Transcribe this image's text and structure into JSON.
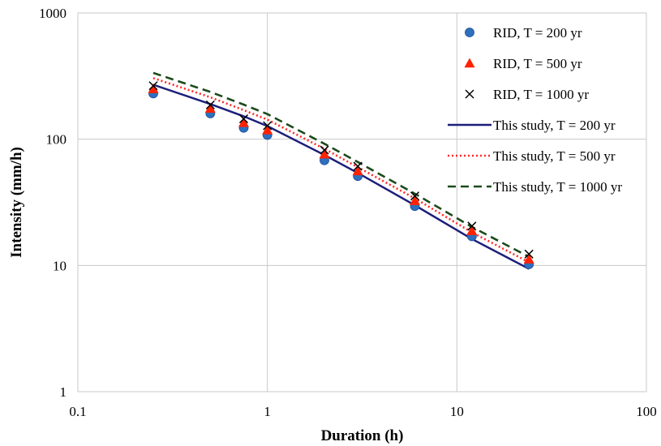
{
  "chart_data": {
    "type": "scatter",
    "xlabel": "Duration (h)",
    "ylabel": "Intensity (mm/h)",
    "x_scale": "log",
    "y_scale": "log",
    "xlim": [
      0.1,
      100
    ],
    "ylim": [
      1,
      1000
    ],
    "x_ticks": [
      0.1,
      1,
      10,
      100
    ],
    "x_tick_labels": [
      "0.1",
      "1",
      "10",
      "100"
    ],
    "y_ticks": [
      1,
      10,
      100,
      1000
    ],
    "y_tick_labels": [
      "1",
      "10",
      "100",
      "1000"
    ],
    "grid": true,
    "legend_position": "top-right",
    "series": [
      {
        "name": "RID, T = 200 yr",
        "kind": "marker",
        "marker": "circle",
        "color": "#2e6fbe",
        "x": [
          0.25,
          0.5,
          0.75,
          1,
          2,
          3,
          6,
          12,
          24
        ],
        "y": [
          230,
          160,
          123,
          108,
          68,
          51,
          29.5,
          17,
          10.2
        ]
      },
      {
        "name": "RID, T = 500 yr",
        "kind": "marker",
        "marker": "triangle",
        "color": "#ff2200",
        "x": [
          0.25,
          0.5,
          0.75,
          1,
          2,
          3,
          6,
          12,
          24
        ],
        "y": [
          250,
          175,
          135,
          118,
          76,
          56,
          32.5,
          18.8,
          11.2
        ]
      },
      {
        "name": "RID, T = 1000 yr",
        "kind": "marker",
        "marker": "cross",
        "color": "#000000",
        "x": [
          0.25,
          0.5,
          0.75,
          1,
          2,
          3,
          6,
          12,
          24
        ],
        "y": [
          265,
          187,
          145,
          128,
          82,
          61,
          35.5,
          20.5,
          12.3
        ]
      },
      {
        "name": "This study, T = 200 yr",
        "kind": "line",
        "dash": "solid",
        "color": "#1b1f7a",
        "x": [
          0.25,
          0.5,
          0.75,
          1,
          2,
          3,
          6,
          12,
          24
        ],
        "y": [
          270,
          190,
          152,
          127,
          75,
          54,
          30,
          16.2,
          9.4
        ]
      },
      {
        "name": "This study, T = 500 yr",
        "kind": "line",
        "dash": "dotted",
        "color": "#ff2a2a",
        "x": [
          0.25,
          0.5,
          0.75,
          1,
          2,
          3,
          6,
          12,
          24
        ],
        "y": [
          305,
          215,
          170,
          143,
          84,
          60,
          34,
          18.3,
          10.6
        ]
      },
      {
        "name": "This study, T = 1000 yr",
        "kind": "line",
        "dash": "dashed",
        "color": "#1a4a1a",
        "x": [
          0.25,
          0.5,
          0.75,
          1,
          2,
          3,
          6,
          12,
          24
        ],
        "y": [
          335,
          237,
          188,
          158,
          92,
          66,
          37,
          20.2,
          11.7
        ]
      }
    ]
  }
}
